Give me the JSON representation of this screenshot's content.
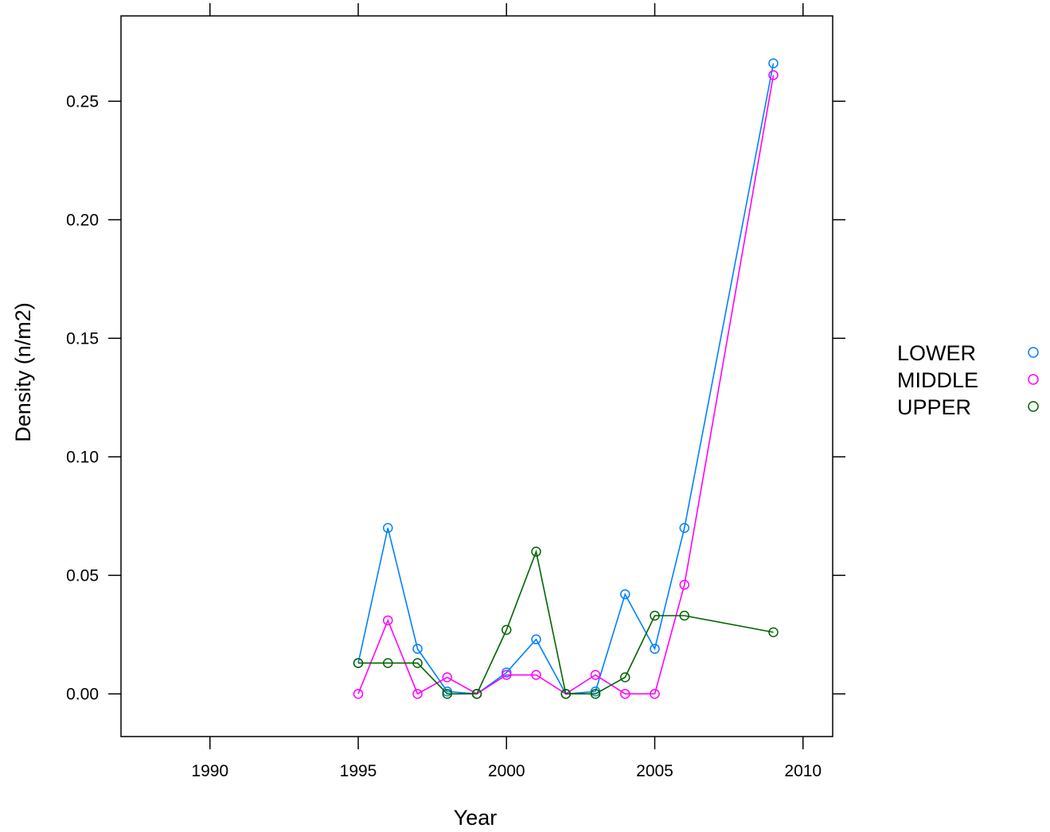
{
  "chart_data": {
    "type": "line",
    "title": "",
    "xlabel": "Year",
    "ylabel": "Density (n/m2)",
    "xlim": [
      1987,
      2011
    ],
    "ylim": [
      -0.018,
      0.286
    ],
    "xticks": [
      1990,
      1995,
      2000,
      2005,
      2010
    ],
    "xtick_labels": [
      "1990",
      "1995",
      "2000",
      "2005",
      "2010"
    ],
    "yticks": [
      0.0,
      0.05,
      0.1,
      0.15,
      0.2,
      0.25
    ],
    "ytick_labels": [
      "0.00",
      "0.05",
      "0.10",
      "0.15",
      "0.20",
      "0.25"
    ],
    "grid": false,
    "legend_position": "right",
    "markers": "open-circle",
    "series": [
      {
        "name": "LOWER",
        "color": "#0080ff",
        "points": [
          [
            1995,
            0.013
          ],
          [
            1996,
            0.07
          ],
          [
            1997,
            0.019
          ],
          [
            1998,
            0.001
          ],
          [
            1999,
            0.0
          ],
          [
            2000,
            0.009
          ],
          [
            2001,
            0.023
          ],
          [
            2002,
            0.0
          ],
          [
            2003,
            0.001
          ],
          [
            2004,
            0.042
          ],
          [
            2005,
            0.019
          ],
          [
            2006,
            0.07
          ],
          [
            2009,
            0.266
          ]
        ]
      },
      {
        "name": "MIDDLE",
        "color": "#ff00ff",
        "points": [
          [
            1995,
            0.0
          ],
          [
            1996,
            0.031
          ],
          [
            1997,
            0.0
          ],
          [
            1998,
            0.007
          ],
          [
            1999,
            0.0
          ],
          [
            2000,
            0.008
          ],
          [
            2001,
            0.008
          ],
          [
            2002,
            0.0
          ],
          [
            2003,
            0.008
          ],
          [
            2004,
            0.0
          ],
          [
            2005,
            0.0
          ],
          [
            2006,
            0.046
          ],
          [
            2009,
            0.261
          ]
        ]
      },
      {
        "name": "UPPER",
        "color": "#006400",
        "points": [
          [
            1995,
            0.013
          ],
          [
            1996,
            0.013
          ],
          [
            1997,
            0.013
          ],
          [
            1998,
            0.0
          ],
          [
            1999,
            0.0
          ],
          [
            2000,
            0.027
          ],
          [
            2001,
            0.06
          ],
          [
            2002,
            0.0
          ],
          [
            2003,
            0.0
          ],
          [
            2004,
            0.007
          ],
          [
            2005,
            0.033
          ],
          [
            2006,
            0.033
          ],
          [
            2009,
            0.026
          ]
        ]
      }
    ]
  }
}
